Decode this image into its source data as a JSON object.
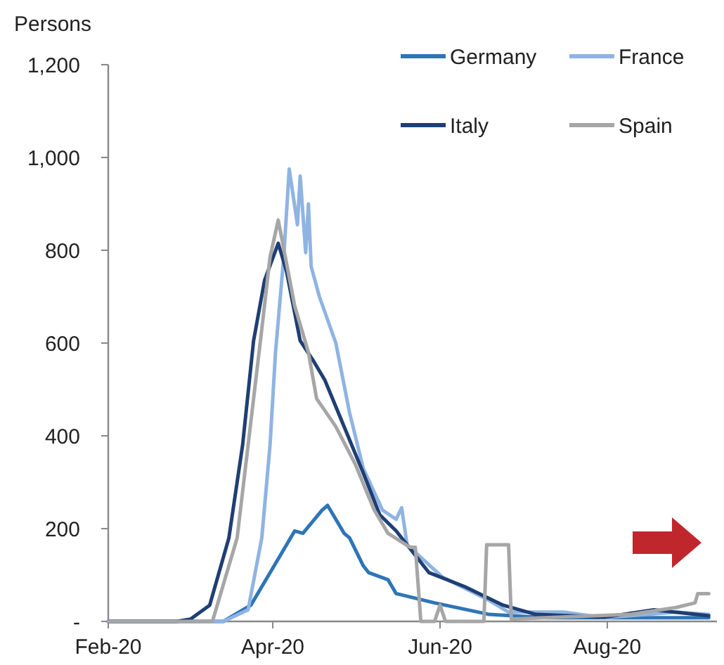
{
  "chart_data": {
    "type": "line",
    "ylabel": "Persons",
    "legend": "top right",
    "grid": false,
    "xlim": [
      "2020-02-01",
      "2020-09-10"
    ],
    "xticks": [
      {
        "value": "2020-02-01",
        "label": "Feb-20"
      },
      {
        "value": "2020-04-01",
        "label": "Apr-20"
      },
      {
        "value": "2020-06-01",
        "label": "Jun-20"
      },
      {
        "value": "2020-08-01",
        "label": "Aug-20"
      }
    ],
    "ylim": [
      0,
      1200
    ],
    "yticks": [
      {
        "value": 0,
        "label": "-"
      },
      {
        "value": 200,
        "label": "200"
      },
      {
        "value": 400,
        "label": "400"
      },
      {
        "value": 600,
        "label": "600"
      },
      {
        "value": 800,
        "label": "800"
      },
      {
        "value": 1000,
        "label": "1,000"
      },
      {
        "value": 1200,
        "label": "1,200"
      }
    ],
    "series": [
      {
        "name": "Germany",
        "color": "#2e75b6",
        "x": [
          "2020-02-01",
          "2020-03-14",
          "2020-03-24",
          "2020-04-03",
          "2020-04-09",
          "2020-04-12",
          "2020-04-19",
          "2020-04-21",
          "2020-04-27",
          "2020-04-29",
          "2020-05-04",
          "2020-05-06",
          "2020-05-13",
          "2020-05-16",
          "2020-05-30",
          "2020-06-19",
          "2020-07-10",
          "2020-09-07"
        ],
        "values": [
          0,
          0,
          35,
          135,
          195,
          190,
          240,
          250,
          190,
          180,
          120,
          105,
          90,
          60,
          40,
          15,
          8,
          8
        ]
      },
      {
        "name": "France",
        "color": "#8fb4e3",
        "x": [
          "2020-02-01",
          "2020-03-14",
          "2020-03-23",
          "2020-03-28",
          "2020-03-31",
          "2020-04-02",
          "2020-04-05",
          "2020-04-07",
          "2020-04-10",
          "2020-04-11",
          "2020-04-13",
          "2020-04-14",
          "2020-04-15",
          "2020-04-18",
          "2020-04-24",
          "2020-04-29",
          "2020-05-04",
          "2020-05-11",
          "2020-05-16",
          "2020-05-18",
          "2020-05-20",
          "2020-06-02",
          "2020-06-19",
          "2020-06-26",
          "2020-07-16",
          "2020-07-31",
          "2020-08-26",
          "2020-09-07"
        ],
        "values": [
          0,
          0,
          25,
          180,
          380,
          580,
          785,
          975,
          855,
          960,
          795,
          900,
          765,
          700,
          600,
          450,
          330,
          240,
          220,
          245,
          165,
          95,
          45,
          20,
          20,
          8,
          20,
          15
        ]
      },
      {
        "name": "Italy",
        "color": "#1f3f73",
        "x": [
          "2020-02-01",
          "2020-02-26",
          "2020-03-02",
          "2020-03-09",
          "2020-03-16",
          "2020-03-21",
          "2020-03-25",
          "2020-03-29",
          "2020-04-03",
          "2020-04-06",
          "2020-04-11",
          "2020-04-16",
          "2020-04-20",
          "2020-04-27",
          "2020-05-04",
          "2020-05-10",
          "2020-05-16",
          "2020-05-28",
          "2020-06-10",
          "2020-06-24",
          "2020-07-06",
          "2020-07-31",
          "2020-08-18",
          "2020-09-07"
        ],
        "values": [
          0,
          0,
          5,
          35,
          180,
          380,
          605,
          735,
          815,
          755,
          605,
          560,
          520,
          420,
          320,
          230,
          195,
          105,
          75,
          35,
          15,
          9,
          25,
          12
        ]
      },
      {
        "name": "Spain",
        "color": "#a6a6a6",
        "x": [
          "2020-02-01",
          "2020-03-10",
          "2020-03-19",
          "2020-03-24",
          "2020-03-28",
          "2020-03-31",
          "2020-04-03",
          "2020-04-09",
          "2020-04-14",
          "2020-04-17",
          "2020-04-24",
          "2020-05-01",
          "2020-05-08",
          "2020-05-13",
          "2020-05-21",
          "2020-05-23",
          "2020-05-25",
          "2020-05-30",
          "2020-06-01",
          "2020-06-03",
          "2020-06-17",
          "2020-06-18",
          "2020-06-26",
          "2020-06-27",
          "2020-08-09",
          "2020-08-26",
          "2020-09-02",
          "2020-09-03",
          "2020-09-07"
        ],
        "values": [
          0,
          0,
          180,
          430,
          630,
          785,
          865,
          680,
          580,
          480,
          420,
          340,
          240,
          190,
          160,
          160,
          0,
          0,
          35,
          0,
          0,
          165,
          165,
          5,
          15,
          30,
          40,
          60,
          60
        ]
      }
    ]
  }
}
